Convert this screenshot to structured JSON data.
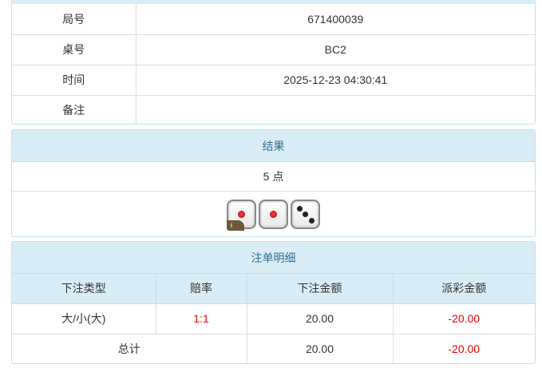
{
  "info": {
    "rows": [
      {
        "label": "局号",
        "value": "671400039"
      },
      {
        "label": "桌号",
        "value": "BC2"
      },
      {
        "label": "时间",
        "value": "2025-12-23 04:30:41"
      },
      {
        "label": "备注",
        "value": ""
      }
    ]
  },
  "result": {
    "title": "结果",
    "points": "5 点",
    "dice": [
      1,
      1,
      3
    ],
    "badge": "i"
  },
  "bets": {
    "title": "注单明细",
    "headers": [
      "下注类型",
      "赔率",
      "下注金额",
      "派彩金额"
    ],
    "rows": [
      {
        "type": "大/小(大)",
        "odds": "1:1",
        "amount": "20.00",
        "payout": "-20.00"
      }
    ],
    "total": {
      "label": "总计",
      "amount": "20.00",
      "payout": "-20.00"
    }
  },
  "colors": {
    "header_bg": "#d9edf7",
    "header_text": "#31708f",
    "negative": "#e00000"
  }
}
